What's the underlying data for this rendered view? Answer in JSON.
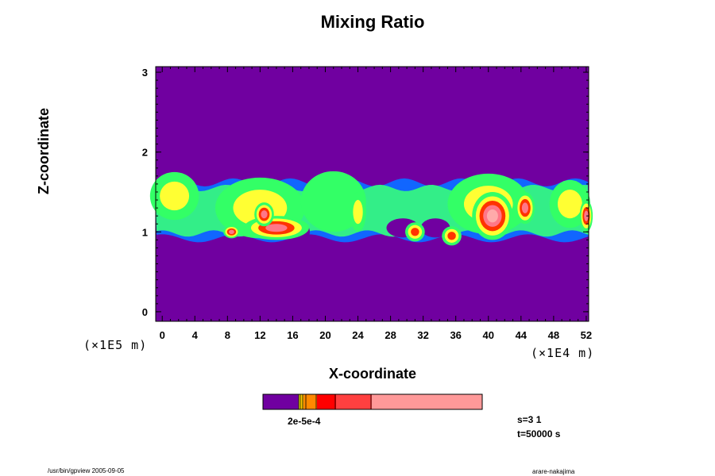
{
  "chart_data": {
    "type": "heatmap",
    "title": "Mixing Ratio",
    "xlabel": "X-coordinate",
    "ylabel": "Z-coordinate",
    "x_ticks": [
      "0",
      "4",
      "8",
      "12",
      "16",
      "20",
      "24",
      "28",
      "32",
      "36",
      "40",
      "44",
      "48",
      "52"
    ],
    "y_ticks": [
      "0",
      "1",
      "2",
      "3"
    ],
    "x_exponent": "(×1E4 m)",
    "y_exponent": "(×1E5 m)",
    "xlim": [
      0,
      52
    ],
    "ylim": [
      0,
      3
    ],
    "colorbar": {
      "label": "2e-5e-4",
      "colors": [
        "#7000a0",
        "#ffff00",
        "#ffcc00",
        "#ff8800",
        "#ff0000",
        "#ff4040",
        "#ff9999"
      ]
    },
    "cloud_regions": [
      {
        "x": 1.5,
        "z": 1.45,
        "rx": 3.0,
        "rz": 0.3,
        "level": 3
      },
      {
        "x": 12,
        "z": 1.3,
        "rx": 5.5,
        "rz": 0.38,
        "level": 3
      },
      {
        "x": 14,
        "z": 1.05,
        "rx": 4.0,
        "rz": 0.15,
        "level": 5
      },
      {
        "x": 12.5,
        "z": 1.22,
        "rx": 1.2,
        "rz": 0.15,
        "level": 5
      },
      {
        "x": 8.5,
        "z": 1.0,
        "rx": 1.0,
        "rz": 0.08,
        "level": 5
      },
      {
        "x": 21,
        "z": 1.38,
        "rx": 4.0,
        "rz": 0.38,
        "level": 2
      },
      {
        "x": 24,
        "z": 1.25,
        "rx": 1.0,
        "rz": 0.25,
        "level": 3
      },
      {
        "x": 27.5,
        "z": 1.3,
        "rx": 2.5,
        "rz": 0.3,
        "level": 1
      },
      {
        "x": 31,
        "z": 1.0,
        "rx": 1.2,
        "rz": 0.12,
        "level": 4
      },
      {
        "x": 35.5,
        "z": 0.95,
        "rx": 1.2,
        "rz": 0.12,
        "level": 4
      },
      {
        "x": 40,
        "z": 1.35,
        "rx": 5.0,
        "rz": 0.38,
        "level": 3
      },
      {
        "x": 40.5,
        "z": 1.2,
        "rx": 2.5,
        "rz": 0.3,
        "level": 6
      },
      {
        "x": 44.5,
        "z": 1.3,
        "rx": 1.2,
        "rz": 0.2,
        "level": 5
      },
      {
        "x": 50,
        "z": 1.35,
        "rx": 2.5,
        "rz": 0.3,
        "level": 3
      },
      {
        "x": 52,
        "z": 1.2,
        "rx": 0.8,
        "rz": 0.2,
        "level": 5
      }
    ]
  },
  "info": {
    "s_line": "s=3 1",
    "t_line": "t=50000 s"
  },
  "footer": {
    "left": "/usr/bin/gpview 2005-09-05",
    "right": "arare-nakajima"
  }
}
